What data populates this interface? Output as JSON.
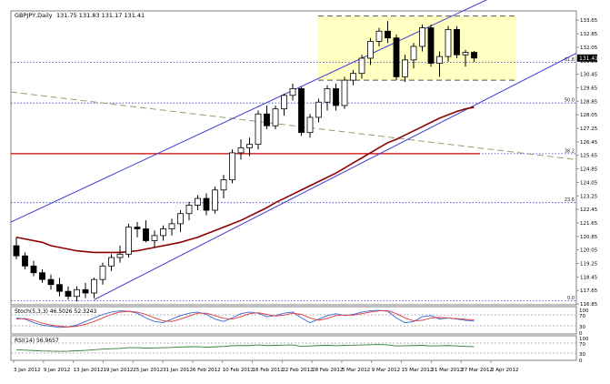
{
  "header": {
    "title": "GBPJPY,Daily",
    "ohlc": "131.75 131.83 131.17 131.41"
  },
  "stoch": {
    "label": "Stoch(5,3,3) 46.5026 52.3243",
    "ticks": [
      "100",
      "70",
      "30",
      "0"
    ]
  },
  "rsi": {
    "label": "RSI(14) 56.9657",
    "ticks": [
      "100",
      "70",
      "30",
      "0"
    ]
  },
  "colors": {
    "bull": "#ffffff",
    "bear": "#000000",
    "candle_outline": "#000000",
    "channel": "#3a3ad0",
    "ma": "#8b0000",
    "level": "#cc0000",
    "fib_dot": "#3a3ad0",
    "trend_dash": "#8f9f6f",
    "zone_fill": "#ffffc2",
    "zone_edge": "#555555",
    "stoch_main": "#3a66d6",
    "stoch_signal": "#e03a3a",
    "rsi_line": "#2e7d32",
    "price_box": "#000000"
  },
  "chart_data": {
    "type": "candlestick",
    "instrument": "GBPJPY",
    "timeframe": "Daily",
    "ylim": [
      116.8,
      134.2
    ],
    "y_ticks": [
      "133.65",
      "132.85",
      "132.05",
      "131.25",
      "130.45",
      "129.65",
      "128.85",
      "128.05",
      "127.25",
      "126.45",
      "125.65",
      "124.85",
      "124.05",
      "123.25",
      "122.45",
      "121.65",
      "120.85",
      "120.05",
      "119.25",
      "118.45",
      "117.65",
      "116.85"
    ],
    "x_labels": [
      "3 Jan 2012",
      "9 Jan 2012",
      "13 Jan 2012",
      "19 Jan 2012",
      "25 Jan 2012",
      "31 Jan 2012",
      "6 Feb 2012",
      "10 Feb 2012",
      "16 Feb 2012",
      "22 Feb 2012",
      "28 Feb 2012",
      "5 Mar 2012",
      "9 Mar 2012",
      "15 Mar 2012",
      "21 Mar 2012",
      "27 Mar 2012",
      "2 Apr 2012"
    ],
    "current_price": "131.41",
    "ohlc": [
      [
        120.3,
        120.8,
        119.5,
        119.7
      ],
      [
        119.7,
        119.9,
        118.9,
        119.1
      ],
      [
        119.1,
        119.4,
        118.5,
        118.7
      ],
      [
        118.7,
        118.9,
        118.1,
        118.3
      ],
      [
        118.3,
        118.6,
        117.7,
        118.0
      ],
      [
        118.0,
        118.4,
        117.3,
        117.6
      ],
      [
        117.6,
        117.9,
        117.1,
        117.3
      ],
      [
        117.3,
        117.9,
        117.0,
        117.7
      ],
      [
        117.7,
        118.1,
        117.2,
        117.5
      ],
      [
        117.5,
        118.4,
        117.2,
        118.3
      ],
      [
        118.3,
        119.3,
        118.0,
        119.1
      ],
      [
        119.1,
        119.8,
        118.8,
        119.6
      ],
      [
        119.6,
        120.3,
        119.3,
        119.8
      ],
      [
        119.8,
        121.6,
        119.6,
        121.4
      ],
      [
        121.4,
        121.7,
        120.8,
        121.3
      ],
      [
        121.3,
        121.8,
        120.5,
        120.6
      ],
      [
        120.6,
        121.2,
        120.2,
        120.9
      ],
      [
        120.9,
        121.5,
        120.6,
        121.3
      ],
      [
        121.3,
        121.9,
        120.9,
        121.6
      ],
      [
        121.6,
        122.4,
        121.1,
        122.2
      ],
      [
        122.2,
        122.9,
        121.8,
        122.7
      ],
      [
        122.7,
        123.3,
        122.4,
        123.1
      ],
      [
        123.1,
        123.4,
        122.1,
        122.4
      ],
      [
        122.4,
        123.8,
        122.2,
        123.6
      ],
      [
        123.6,
        124.5,
        123.1,
        124.2
      ],
      [
        124.2,
        126.0,
        124.0,
        125.8
      ],
      [
        125.8,
        126.6,
        125.4,
        126.1
      ],
      [
        126.1,
        126.7,
        125.6,
        126.3
      ],
      [
        126.3,
        128.3,
        126.0,
        128.1
      ],
      [
        128.1,
        128.6,
        127.2,
        127.4
      ],
      [
        127.4,
        128.6,
        127.2,
        128.4
      ],
      [
        128.4,
        129.3,
        128.0,
        129.2
      ],
      [
        129.2,
        129.9,
        128.9,
        129.6
      ],
      [
        129.6,
        129.7,
        126.8,
        127.0
      ],
      [
        127.0,
        128.1,
        126.7,
        127.9
      ],
      [
        127.9,
        129.0,
        127.6,
        128.8
      ],
      [
        128.8,
        129.8,
        128.3,
        129.6
      ],
      [
        129.6,
        129.9,
        128.3,
        128.6
      ],
      [
        128.6,
        130.3,
        128.4,
        130.1
      ],
      [
        130.1,
        130.7,
        129.8,
        130.5
      ],
      [
        130.5,
        131.6,
        130.2,
        131.4
      ],
      [
        131.4,
        132.6,
        131.0,
        132.4
      ],
      [
        132.4,
        133.2,
        132.1,
        133.0
      ],
      [
        133.0,
        133.6,
        132.3,
        132.6
      ],
      [
        132.6,
        132.8,
        130.1,
        130.3
      ],
      [
        130.3,
        131.6,
        130.0,
        131.3
      ],
      [
        131.3,
        132.3,
        130.8,
        132.1
      ],
      [
        132.1,
        133.4,
        131.8,
        133.2
      ],
      [
        133.2,
        133.4,
        130.9,
        131.1
      ],
      [
        131.1,
        131.8,
        130.3,
        131.5
      ],
      [
        131.5,
        133.3,
        131.2,
        133.1
      ],
      [
        133.1,
        133.3,
        131.4,
        131.6
      ],
      [
        131.6,
        131.9,
        130.9,
        131.75
      ],
      [
        131.75,
        131.83,
        131.17,
        131.41
      ]
    ],
    "ma": [
      120.8,
      120.7,
      120.6,
      120.5,
      120.3,
      120.2,
      120.1,
      120.0,
      119.95,
      119.9,
      119.9,
      119.9,
      119.9,
      119.95,
      120.0,
      120.1,
      120.2,
      120.3,
      120.4,
      120.5,
      120.65,
      120.8,
      121.0,
      121.2,
      121.4,
      121.6,
      121.8,
      122.05,
      122.3,
      122.55,
      122.85,
      123.1,
      123.35,
      123.6,
      123.85,
      124.1,
      124.35,
      124.6,
      124.9,
      125.2,
      125.5,
      125.8,
      126.1,
      126.4,
      126.6,
      126.85,
      127.1,
      127.35,
      127.6,
      127.85,
      128.05,
      128.25,
      128.4,
      128.5
    ],
    "horizontal_levels": [
      {
        "label": "61.8",
        "value": 131.15
      },
      {
        "label": "50.0",
        "value": 128.75
      },
      {
        "label": "38.2",
        "value": 125.75
      },
      {
        "label": "23.6",
        "value": 122.85
      },
      {
        "label": "0.0",
        "value": 117.05
      }
    ],
    "resistance_line": {
      "value": 125.75
    },
    "zone": {
      "top": 133.9,
      "bottom": 130.1
    },
    "channel": {
      "lower_start": [
        9,
        117.1
      ],
      "lower_end": [
        68,
        131.7
      ],
      "upper_start": [
        -1,
        121.7
      ],
      "upper_end": [
        58,
        136.1
      ]
    },
    "trend_dashed": {
      "start": [
        -1,
        129.4
      ],
      "end": [
        70,
        125.4
      ]
    },
    "stochastic": {
      "main": [
        60,
        55,
        40,
        30,
        25,
        20,
        22,
        30,
        45,
        60,
        75,
        85,
        90,
        88,
        80,
        60,
        45,
        40,
        55,
        70,
        80,
        85,
        75,
        55,
        45,
        60,
        78,
        85,
        80,
        65,
        70,
        80,
        85,
        60,
        40,
        55,
        70,
        78,
        70,
        75,
        85,
        90,
        92,
        88,
        60,
        40,
        45,
        65,
        70,
        55,
        60,
        55,
        50,
        47
      ],
      "signal": [
        55,
        58,
        50,
        38,
        30,
        25,
        22,
        25,
        33,
        45,
        60,
        75,
        85,
        88,
        85,
        75,
        60,
        48,
        45,
        55,
        68,
        80,
        80,
        70,
        58,
        55,
        65,
        78,
        82,
        75,
        68,
        72,
        80,
        75,
        60,
        50,
        58,
        70,
        72,
        72,
        78,
        85,
        90,
        90,
        78,
        60,
        48,
        50,
        60,
        62,
        60,
        57,
        54,
        52
      ]
    },
    "rsi_values": [
      42,
      40,
      38,
      36,
      35,
      34,
      35,
      37,
      39,
      42,
      45,
      47,
      48,
      52,
      52,
      50,
      51,
      52,
      53,
      55,
      56,
      57,
      54,
      56,
      58,
      61,
      62,
      62,
      65,
      62,
      63,
      64,
      65,
      58,
      60,
      62,
      63,
      61,
      63,
      64,
      65,
      66,
      67,
      65,
      60,
      61,
      62,
      63,
      60,
      61,
      62,
      60,
      58,
      57
    ]
  }
}
